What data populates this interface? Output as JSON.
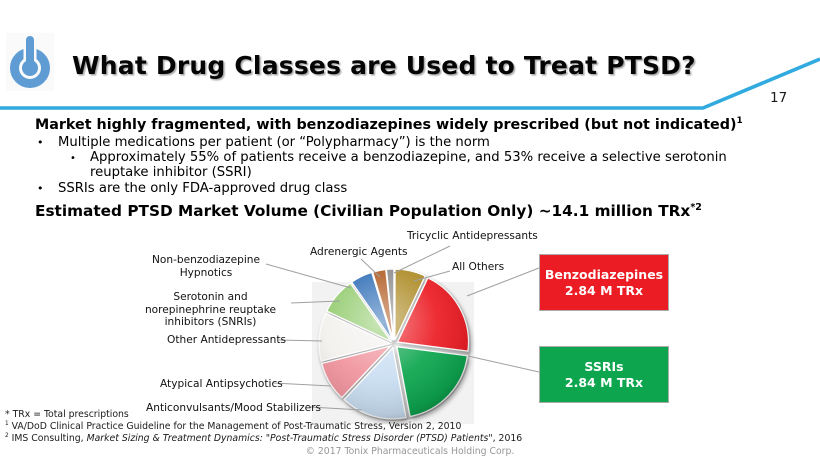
{
  "header": {
    "title": "What Drug Classes are Used to Treat PTSD?",
    "page_number": "17",
    "logo": "tonix-power-logo"
  },
  "body": {
    "bullet_char": "•",
    "heading1": "Market highly fragmented, with benzodiazepines widely prescribed (but not indicated)",
    "heading1_sup": "1",
    "bullet1": "Multiple medications per patient (or “Polypharmacy”) is the norm",
    "subbullet1_line1": "Approximately 55% of patients receive a benzodiazepine, and 53% receive a selective serotonin",
    "subbullet1_line2": "reuptake inhibitor (SSRI)",
    "bullet2": "SSRIs are the only FDA-approved drug class",
    "heading2": "Estimated PTSD Market Volume (Civilian Population Only) ~14.1 million TRx",
    "heading2_sup": "*2"
  },
  "chart_data": {
    "type": "pie",
    "title": "Estimated PTSD Market Volume (Civilian Population Only) ~14.1 million TRx",
    "total": "~14.1 million TRx",
    "legend_position": "outside-labels-with-leader-lines",
    "start_angle_deg": -6,
    "slices": [
      {
        "label": "Tricyclic Antidepressants",
        "value": 1.7,
        "color": "#8C8C8C"
      },
      {
        "label": "All Others",
        "value": 7,
        "color": "#AE8C28"
      },
      {
        "label": "Benzodiazepines",
        "value": 20,
        "color": "#EC1C24"
      },
      {
        "label": "SSRIs",
        "value": 20,
        "color": "#0DA64F"
      },
      {
        "label": "Anticonvulsants/Mood Stabilizers",
        "value": 15,
        "color": "#C9DEF2"
      },
      {
        "label": "Atypical Antipsychotics",
        "value": 9,
        "color": "#F0939D"
      },
      {
        "label": "Other Antidepressants",
        "value": 11,
        "color": "#F3F1EE"
      },
      {
        "label": "Serotonin and norepinephrine reuptake inhibitors (SNRIs)",
        "value": 8.3,
        "color": "#94CC70"
      },
      {
        "label": "Non-benzodiazepine Hypnotics",
        "value": 5,
        "color": "#2F6EB6"
      },
      {
        "label": "Adrenergic Agents",
        "value": 3,
        "color": "#B05A20"
      }
    ],
    "callouts": [
      {
        "line1": "Benzodiazepines",
        "line2": "2.84 M TRx",
        "color": "#EC1C24"
      },
      {
        "line1": "SSRIs",
        "line2": "2.84 M TRx",
        "color": "#0DA64F"
      }
    ]
  },
  "footnotes": {
    "trx": "* TRx = Total prescriptions",
    "fn1_sup": "1",
    "fn1": "VA/DoD Clinical Practice Guideline for the Management of Post-Traumatic Stress, Version 2, 2010",
    "fn2_sup": "2",
    "fn2_prefix": "IMS Consulting, ",
    "fn2_italic": "Market Sizing & Treatment Dynamics: \"Post-Traumatic Stress Disorder (PTSD) Patients\"",
    "fn2_suffix": ", 2016",
    "copyright": "© 2017 Tonix Pharmaceuticals Holding Corp."
  },
  "colors": {
    "accent_line": "#31AADF",
    "logo_blue": "#5E9CD3",
    "chart_panel": "#F2F2F2",
    "leader_line": "#A0A0A0"
  }
}
